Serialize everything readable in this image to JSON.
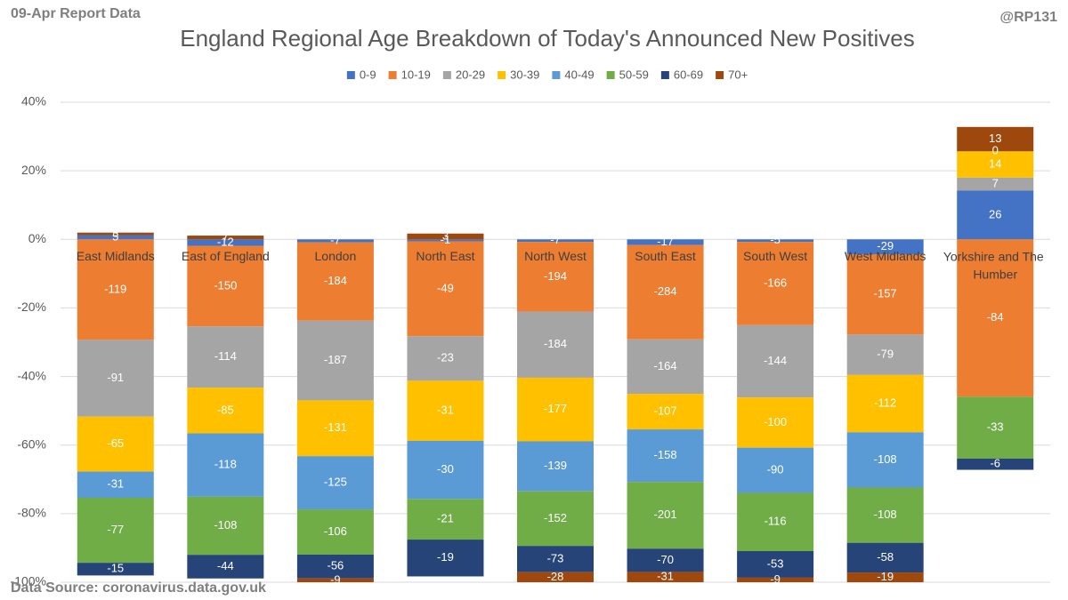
{
  "chart_data": {
    "type": "bar",
    "stacking": "percent",
    "title": "England Regional Age Breakdown of Today's Announced New Positives",
    "report_label": "09-Apr Report Data",
    "credit": "@RP131",
    "source": "Data Source: coronavirus.data.gov.uk",
    "categories": [
      "East Midlands",
      "East of England",
      "London",
      "North East",
      "North West",
      "South East",
      "South West",
      "West Midlands",
      "Yorkshire and The Humber"
    ],
    "series": [
      {
        "name": "0-9",
        "color": "#4472c4",
        "values": [
          5,
          -12,
          -7,
          -1,
          -7,
          -17,
          -5,
          -29,
          26
        ]
      },
      {
        "name": "10-19",
        "color": "#ed7d31",
        "values": [
          -119,
          -150,
          -184,
          -49,
          -194,
          -284,
          -166,
          -157,
          -84
        ]
      },
      {
        "name": "20-29",
        "color": "#a5a5a5",
        "values": [
          -91,
          -114,
          -187,
          -23,
          -184,
          -164,
          -144,
          -79,
          7
        ]
      },
      {
        "name": "30-39",
        "color": "#ffc000",
        "values": [
          -65,
          -85,
          -131,
          -31,
          -177,
          -107,
          -100,
          -112,
          14
        ]
      },
      {
        "name": "40-49",
        "color": "#5b9bd5",
        "values": [
          -31,
          -118,
          -125,
          -30,
          -139,
          -158,
          -90,
          -108,
          0
        ]
      },
      {
        "name": "50-59",
        "color": "#70ad47",
        "values": [
          -77,
          -108,
          -106,
          -21,
          -152,
          -201,
          -116,
          -108,
          -33
        ]
      },
      {
        "name": "60-69",
        "color": "#264478",
        "values": [
          -15,
          -44,
          -56,
          -19,
          -73,
          -70,
          -53,
          -58,
          -6
        ]
      },
      {
        "name": "70+",
        "color": "#9e480e",
        "values": [
          3,
          7,
          -9,
          3,
          -28,
          -31,
          -9,
          -19,
          13
        ]
      }
    ],
    "ylim": [
      -100,
      40
    ],
    "yticks": [
      {
        "value": -100,
        "label": "-100%"
      },
      {
        "value": -80,
        "label": "-80%"
      },
      {
        "value": -60,
        "label": "-60%"
      },
      {
        "value": -40,
        "label": "-40%"
      },
      {
        "value": -20,
        "label": "-20%"
      },
      {
        "value": 0,
        "label": "0%"
      },
      {
        "value": 20,
        "label": "20%"
      },
      {
        "value": 40,
        "label": "40%"
      }
    ],
    "grid": true,
    "legend": "top"
  }
}
